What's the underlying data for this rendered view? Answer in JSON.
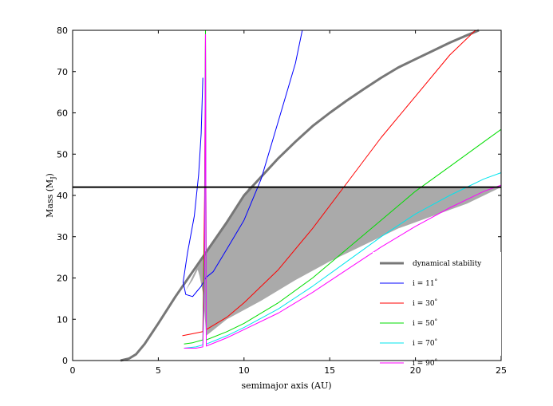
{
  "chart_data": {
    "type": "line",
    "title": "",
    "xlabel": "semimajor axis (AU)",
    "ylabel": "Mass (M",
    "ylabel_sub": "J",
    "ylabel_close": ")",
    "xlim": [
      0,
      25
    ],
    "ylim": [
      0,
      80
    ],
    "xticks": [
      0,
      5,
      10,
      15,
      20,
      25
    ],
    "yticks": [
      0,
      10,
      20,
      30,
      40,
      50,
      60,
      70,
      80
    ],
    "grid": false,
    "legend_position": "lower-right",
    "threshold_line": {
      "y": 42,
      "color": "#000000"
    },
    "shaded_region": {
      "color": "#aaaaaa",
      "points": [
        [
          6.6,
          17
        ],
        [
          7.3,
          23
        ],
        [
          8,
          28
        ],
        [
          9,
          34
        ],
        [
          10,
          40
        ],
        [
          10.3,
          42
        ],
        [
          11,
          42
        ],
        [
          13,
          42
        ],
        [
          15,
          42
        ],
        [
          17,
          42
        ],
        [
          19,
          42
        ],
        [
          21,
          42
        ],
        [
          23,
          42
        ],
        [
          25,
          42
        ],
        [
          23,
          38
        ],
        [
          21,
          35
        ],
        [
          19,
          32
        ],
        [
          17,
          28
        ],
        [
          15,
          24
        ],
        [
          13,
          19.5
        ],
        [
          11,
          14.5
        ],
        [
          9,
          10
        ],
        [
          7.8,
          6
        ],
        [
          7.6,
          16.5
        ],
        [
          7.4,
          20.5
        ],
        [
          7.3,
          22
        ],
        [
          7.0,
          19.5
        ],
        [
          6.6,
          17
        ]
      ]
    },
    "series": [
      {
        "name": "dynamical stability",
        "color": "#777777",
        "width": 3,
        "points": [
          [
            2.8,
            0
          ],
          [
            3.3,
            0.5
          ],
          [
            3.7,
            1.5
          ],
          [
            4.2,
            4
          ],
          [
            5,
            9
          ],
          [
            6,
            15.5
          ],
          [
            7,
            21.5
          ],
          [
            8,
            27.5
          ],
          [
            9,
            33.5
          ],
          [
            10,
            40
          ],
          [
            11,
            44.5
          ],
          [
            12,
            49
          ],
          [
            13,
            53
          ],
          [
            14,
            56.8
          ],
          [
            15,
            60
          ],
          [
            16,
            63
          ],
          [
            17,
            65.8
          ],
          [
            18,
            68.5
          ],
          [
            19,
            71
          ],
          [
            20,
            73
          ],
          [
            21,
            75
          ],
          [
            22,
            77
          ],
          [
            23,
            78.8
          ],
          [
            23.7,
            80
          ]
        ]
      },
      {
        "name": "i = 11°",
        "label_main": "i = 11",
        "color": "#0000ff",
        "width": 1,
        "points": [
          [
            7.6,
            68.5
          ],
          [
            7.5,
            55
          ],
          [
            7.35,
            45
          ],
          [
            7.1,
            35
          ],
          [
            6.7,
            26
          ],
          [
            6.45,
            19
          ],
          [
            6.6,
            16
          ],
          [
            7,
            15.5
          ],
          [
            7.3,
            17
          ],
          [
            7.5,
            18
          ],
          [
            7.75,
            20
          ],
          [
            8.2,
            21.5
          ],
          [
            9,
            27
          ],
          [
            10,
            34
          ],
          [
            11,
            44
          ],
          [
            12,
            58
          ],
          [
            13,
            72
          ],
          [
            13.4,
            80
          ]
        ]
      },
      {
        "name": "i = 30°",
        "label_main": "i = 30",
        "color": "#ff0000",
        "width": 1,
        "points": [
          [
            6.4,
            6
          ],
          [
            7,
            6.5
          ],
          [
            7.6,
            7
          ],
          [
            7.7,
            40
          ],
          [
            7.75,
            80
          ],
          [
            7.8,
            7.5
          ],
          [
            9,
            10.5
          ],
          [
            10,
            14
          ],
          [
            12,
            22
          ],
          [
            14,
            32
          ],
          [
            16,
            43
          ],
          [
            18,
            54
          ],
          [
            20,
            64
          ],
          [
            22,
            74
          ],
          [
            23.5,
            80
          ]
        ]
      },
      {
        "name": "i = 50°",
        "label_main": "i = 50",
        "color": "#00dd00",
        "width": 1,
        "points": [
          [
            6.5,
            4
          ],
          [
            7,
            4.3
          ],
          [
            7.6,
            5
          ],
          [
            7.7,
            30
          ],
          [
            7.75,
            80
          ],
          [
            7.8,
            5
          ],
          [
            9,
            7
          ],
          [
            10,
            9
          ],
          [
            12,
            14
          ],
          [
            14,
            20
          ],
          [
            16,
            27
          ],
          [
            18,
            34
          ],
          [
            20,
            41
          ],
          [
            22,
            47
          ],
          [
            24,
            53
          ],
          [
            25,
            56
          ]
        ]
      },
      {
        "name": "i = 70°",
        "label_main": "i = 70",
        "color": "#00e5ee",
        "width": 1,
        "points": [
          [
            6.5,
            3
          ],
          [
            7.2,
            3.3
          ],
          [
            7.6,
            3.8
          ],
          [
            7.7,
            20
          ],
          [
            7.75,
            79
          ],
          [
            7.8,
            4
          ],
          [
            9,
            6
          ],
          [
            10,
            8
          ],
          [
            12,
            12.5
          ],
          [
            14,
            18
          ],
          [
            16,
            24
          ],
          [
            18,
            30
          ],
          [
            20,
            35.5
          ],
          [
            22,
            40
          ],
          [
            24,
            44
          ],
          [
            25,
            45.5
          ]
        ]
      },
      {
        "name": "i = 90°",
        "label_main": "i = 90",
        "color": "#ff00ff",
        "width": 1,
        "points": [
          [
            6.5,
            3
          ],
          [
            7.2,
            3
          ],
          [
            7.6,
            3.3
          ],
          [
            7.7,
            20
          ],
          [
            7.75,
            79
          ],
          [
            7.8,
            3.5
          ],
          [
            9,
            5.5
          ],
          [
            10,
            7.5
          ],
          [
            12,
            11.5
          ],
          [
            14,
            16.5
          ],
          [
            16,
            22
          ],
          [
            18,
            27.5
          ],
          [
            20,
            32.5
          ],
          [
            22,
            37
          ],
          [
            24,
            41
          ],
          [
            25,
            42.5
          ]
        ]
      }
    ]
  }
}
